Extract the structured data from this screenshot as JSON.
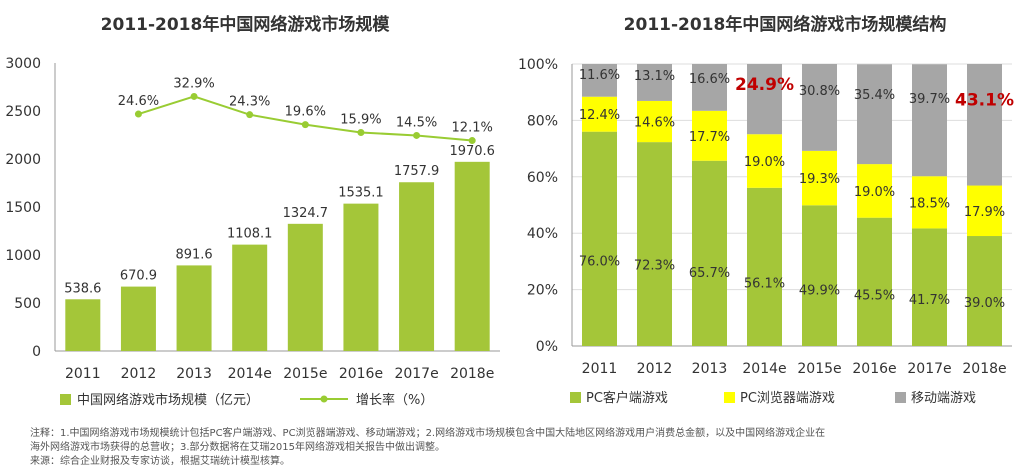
{
  "colors": {
    "green": "#a4c639",
    "yellow": "#ffff00",
    "gray": "#a6a6a6",
    "line": "#99cc33",
    "highlight": "#c00000",
    "axis": "#999999",
    "grid": "#dddddd"
  },
  "chart_data": [
    {
      "type": "bar",
      "title": "2011-2018年中国网络游戏市场规模",
      "categories": [
        "2011",
        "2012",
        "2013",
        "2014e",
        "2015e",
        "2016e",
        "2017e",
        "2018e"
      ],
      "ylim": [
        0,
        3000
      ],
      "yticks": [
        "0",
        "500",
        "1000",
        "1500",
        "2000",
        "2500",
        "3000"
      ],
      "series": [
        {
          "name": "中国网络游戏市场规模（亿元）",
          "type": "bar",
          "values": [
            538.6,
            670.9,
            891.6,
            1108.1,
            1324.7,
            1535.1,
            1757.9,
            1970.6
          ],
          "labels": [
            "538.6",
            "670.9",
            "891.6",
            "1108.1",
            "1324.7",
            "1535.1",
            "1757.9",
            "1970.6"
          ]
        },
        {
          "name": "增长率（%）",
          "type": "line",
          "values": [
            null,
            24.6,
            32.9,
            24.3,
            19.6,
            15.9,
            14.5,
            12.1
          ],
          "labels": [
            "",
            "24.6%",
            "32.9%",
            "24.3%",
            "19.6%",
            "15.9%",
            "14.5%",
            "12.1%"
          ]
        }
      ]
    },
    {
      "type": "stacked-bar",
      "title": "2011-2018年中国网络游戏市场规模结构",
      "categories": [
        "2011",
        "2012",
        "2013",
        "2014e",
        "2015e",
        "2016e",
        "2017e",
        "2018e"
      ],
      "ylim": [
        0,
        100
      ],
      "yticks": [
        "0%",
        "20%",
        "40%",
        "60%",
        "80%",
        "100%"
      ],
      "series": [
        {
          "name": "PC客户端游戏",
          "values": [
            76.0,
            72.3,
            65.7,
            56.1,
            49.9,
            45.5,
            41.7,
            39.0
          ],
          "labels": [
            "76.0%",
            "72.3%",
            "65.7%",
            "56.1%",
            "49.9%",
            "45.5%",
            "41.7%",
            "39.0%"
          ]
        },
        {
          "name": "PC浏览器端游戏",
          "values": [
            12.4,
            14.6,
            17.7,
            19.0,
            19.3,
            19.0,
            18.5,
            17.9
          ],
          "labels": [
            "12.4%",
            "14.6%",
            "17.7%",
            "19.0%",
            "19.3%",
            "19.0%",
            "18.5%",
            "17.9%"
          ]
        },
        {
          "name": "移动端游戏",
          "values": [
            11.6,
            13.1,
            16.6,
            24.9,
            30.8,
            35.4,
            39.7,
            43.1
          ],
          "labels": [
            "11.6%",
            "13.1%",
            "16.6%",
            "24.9%",
            "30.8%",
            "35.4%",
            "39.7%",
            "43.1%"
          ],
          "highlighted": [
            false,
            false,
            false,
            true,
            false,
            false,
            false,
            true
          ]
        }
      ]
    }
  ],
  "notes": {
    "line1": "注释：1.中国网络游戏市场规模统计包括PC客户端游戏、PC浏览器端游戏、移动端游戏；2.网络游戏市场规模包含中国大陆地区网络游戏用户消费总金额，以及中国网络游戏企业在",
    "line2": "海外网络游戏市场获得的总营收；3.部分数据将在艾瑞2015年网络游戏相关报告中做出调整。",
    "line3": "来源：综合企业财报及专家访谈，根据艾瑞统计模型核算。"
  }
}
